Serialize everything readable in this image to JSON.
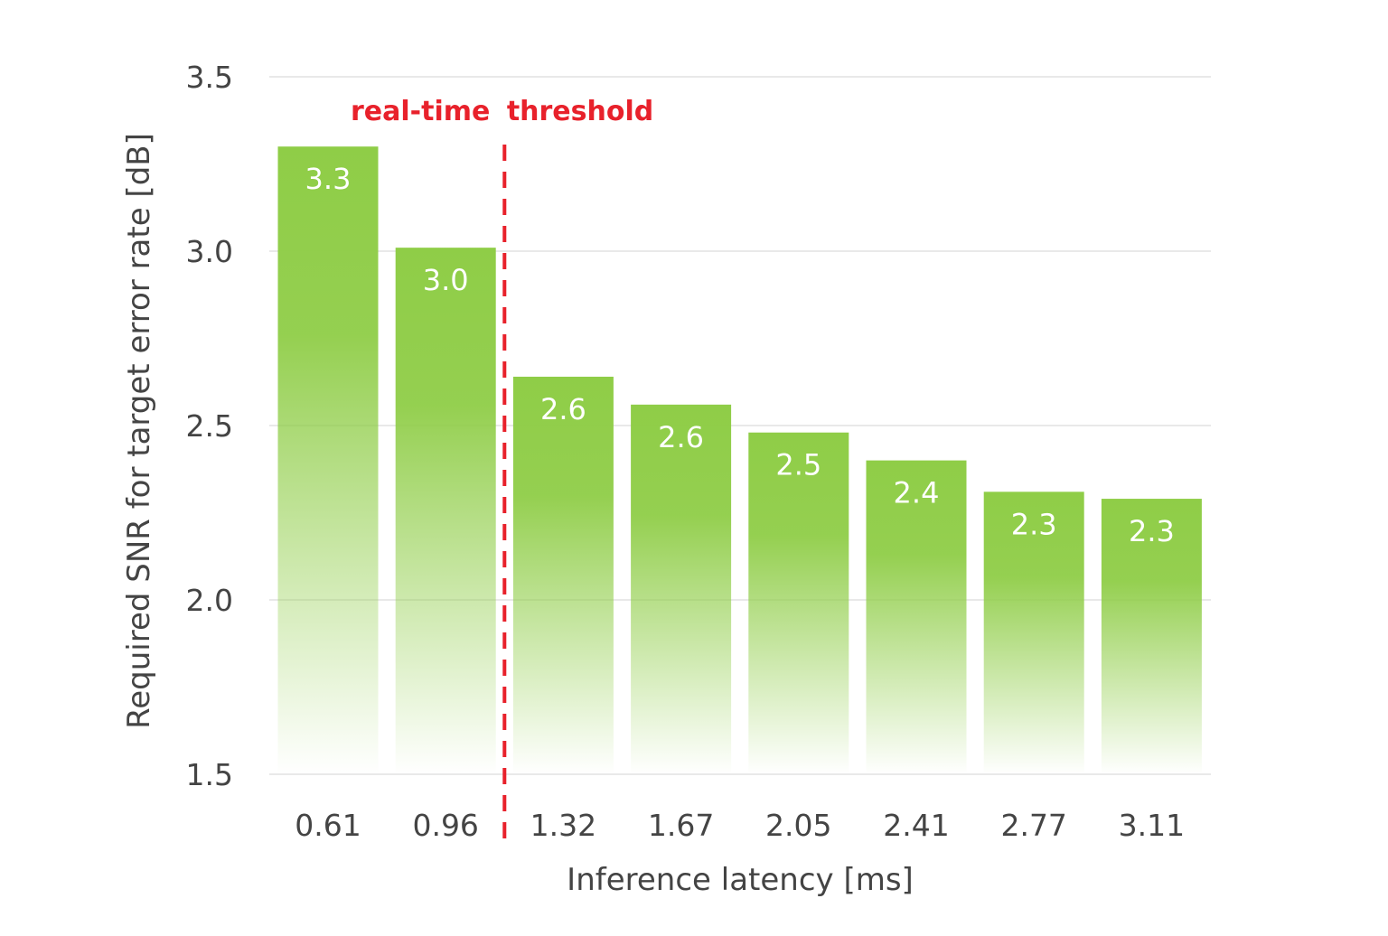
{
  "chart_data": {
    "type": "bar",
    "categories": [
      "0.61",
      "0.96",
      "1.32",
      "1.67",
      "2.05",
      "2.41",
      "2.77",
      "3.11"
    ],
    "values": [
      3.3,
      3.01,
      2.64,
      2.56,
      2.48,
      2.4,
      2.31,
      2.29
    ],
    "data_labels": [
      "3.3",
      "3.0",
      "2.6",
      "2.6",
      "2.5",
      "2.4",
      "2.3",
      "2.3"
    ],
    "xlabel": "Inference latency [ms]",
    "ylabel": "Required SNR for target error rate [dB]",
    "ylim": [
      1.5,
      3.5
    ],
    "yticks": [
      "1.5",
      "2.0",
      "2.5",
      "3.0",
      "3.5"
    ],
    "grid": true,
    "bar_color": "#8fcd47",
    "threshold": {
      "label_part1": "real-time",
      "label_part2": "threshold",
      "after_category_index": 1,
      "color": "#e8212b"
    }
  }
}
